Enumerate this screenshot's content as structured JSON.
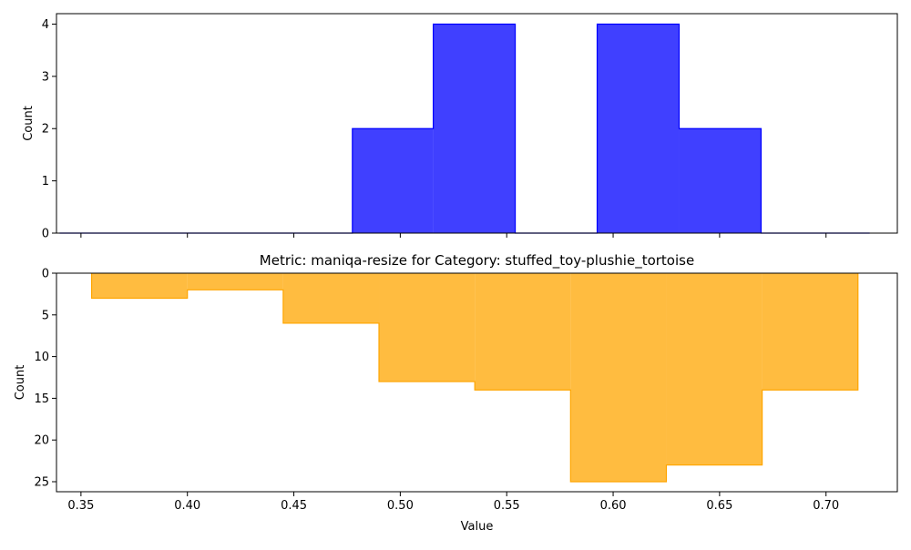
{
  "chart_data": [
    {
      "type": "area",
      "title": "",
      "xlabel": "",
      "ylabel": "Count",
      "ylim": [
        0,
        4.2
      ],
      "y_ticks": [
        0,
        1,
        2,
        3,
        4
      ],
      "x_tick_labels_shown": false,
      "color": "#0000ff",
      "series": [
        {
          "bins": [
            {
              "x0": 0.34,
              "x1": 0.3785,
              "count": 0
            },
            {
              "x0": 0.3785,
              "x1": 0.4175,
              "count": 0
            },
            {
              "x0": 0.4175,
              "x1": 0.4555,
              "count": 0
            },
            {
              "x0": 0.4555,
              "x1": 0.4775,
              "count": 0
            },
            {
              "x0": 0.4775,
              "x1": 0.5155,
              "count": 2
            },
            {
              "x0": 0.5155,
              "x1": 0.554,
              "count": 4
            },
            {
              "x0": 0.554,
              "x1": 0.5925,
              "count": 0
            },
            {
              "x0": 0.5925,
              "x1": 0.631,
              "count": 4
            },
            {
              "x0": 0.631,
              "x1": 0.6695,
              "count": 2
            },
            {
              "x0": 0.6695,
              "x1": 0.7075,
              "count": 0
            },
            {
              "x0": 0.7075,
              "x1": 0.7205,
              "count": 0
            }
          ]
        }
      ]
    },
    {
      "type": "area",
      "title": "Metric: maniqa-resize for Category: stuffed_toy-plushie_tortoise",
      "xlabel": "Value",
      "ylabel": "Count",
      "ylim": [
        26.2,
        0
      ],
      "y_inverted": true,
      "y_ticks": [
        0,
        5,
        10,
        15,
        20,
        25
      ],
      "x_ticks": [
        0.35,
        0.4,
        0.45,
        0.5,
        0.55,
        0.6,
        0.65,
        0.7
      ],
      "color": "#ffa500",
      "series": [
        {
          "bins": [
            {
              "x0": 0.355,
              "x1": 0.4,
              "count": 3
            },
            {
              "x0": 0.4,
              "x1": 0.445,
              "count": 2
            },
            {
              "x0": 0.445,
              "x1": 0.49,
              "count": 6
            },
            {
              "x0": 0.49,
              "x1": 0.535,
              "count": 13
            },
            {
              "x0": 0.535,
              "x1": 0.58,
              "count": 14
            },
            {
              "x0": 0.58,
              "x1": 0.625,
              "count": 25
            },
            {
              "x0": 0.625,
              "x1": 0.67,
              "count": 23
            },
            {
              "x0": 0.67,
              "x1": 0.715,
              "count": 14
            }
          ]
        }
      ]
    }
  ]
}
